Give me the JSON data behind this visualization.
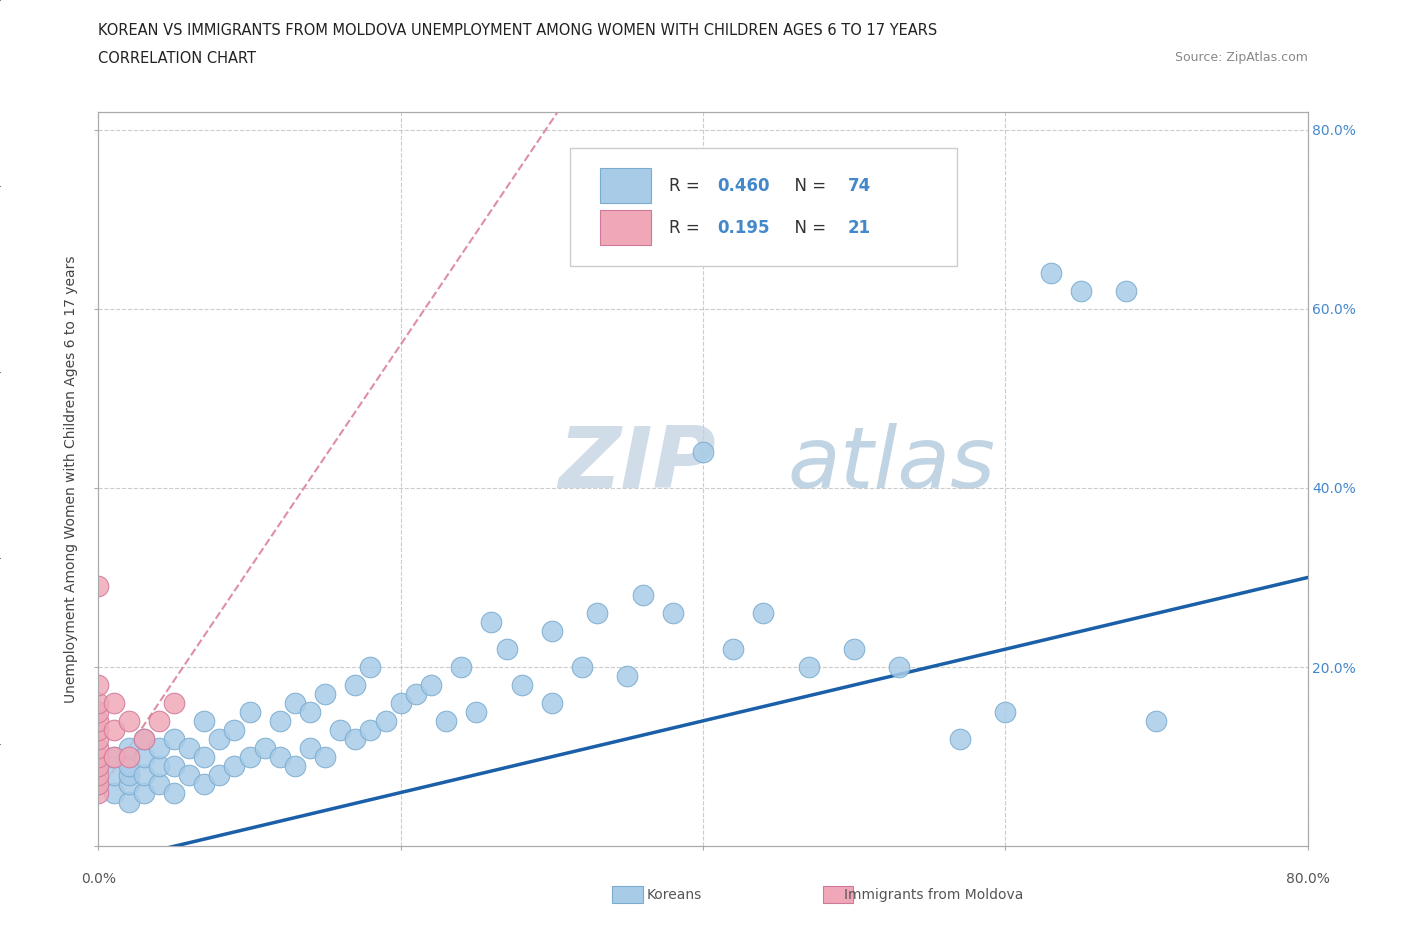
{
  "title_line1": "KOREAN VS IMMIGRANTS FROM MOLDOVA UNEMPLOYMENT AMONG WOMEN WITH CHILDREN AGES 6 TO 17 YEARS",
  "title_line2": "CORRELATION CHART",
  "source_text": "Source: ZipAtlas.com",
  "ylabel": "Unemployment Among Women with Children Ages 6 to 17 years",
  "xlim": [
    0.0,
    0.8
  ],
  "ylim": [
    0.0,
    0.82
  ],
  "korean_R": "0.460",
  "korean_N": "74",
  "moldova_R": "0.195",
  "moldova_N": "21",
  "korean_color": "#a8cce8",
  "korean_edge_color": "#7aacd0",
  "moldova_color": "#f0a8b8",
  "moldova_edge_color": "#d07898",
  "regression_line_korean_color": "#1a5fa8",
  "regression_line_moldova_color": "#d06080",
  "watermark_zip": "ZIP",
  "watermark_atlas": "atlas",
  "watermark_color": "#d0dce8",
  "grid_color": "#cccccc",
  "right_tick_color": "#4488cc",
  "korean_x": [
    0.0,
    0.0,
    0.01,
    0.01,
    0.01,
    0.02,
    0.02,
    0.02,
    0.02,
    0.02,
    0.03,
    0.03,
    0.03,
    0.03,
    0.04,
    0.04,
    0.04,
    0.05,
    0.05,
    0.05,
    0.06,
    0.06,
    0.07,
    0.07,
    0.07,
    0.08,
    0.08,
    0.09,
    0.09,
    0.1,
    0.1,
    0.11,
    0.12,
    0.12,
    0.13,
    0.13,
    0.14,
    0.14,
    0.15,
    0.15,
    0.16,
    0.17,
    0.17,
    0.18,
    0.18,
    0.19,
    0.2,
    0.21,
    0.22,
    0.23,
    0.24,
    0.25,
    0.26,
    0.27,
    0.28,
    0.3,
    0.3,
    0.32,
    0.33,
    0.35,
    0.36,
    0.38,
    0.4,
    0.42,
    0.44,
    0.47,
    0.5,
    0.53,
    0.57,
    0.6,
    0.63,
    0.65,
    0.68,
    0.7
  ],
  "korean_y": [
    0.07,
    0.09,
    0.06,
    0.08,
    0.1,
    0.05,
    0.07,
    0.08,
    0.09,
    0.11,
    0.06,
    0.08,
    0.1,
    0.12,
    0.07,
    0.09,
    0.11,
    0.06,
    0.09,
    0.12,
    0.08,
    0.11,
    0.07,
    0.1,
    0.14,
    0.08,
    0.12,
    0.09,
    0.13,
    0.1,
    0.15,
    0.11,
    0.1,
    0.14,
    0.09,
    0.16,
    0.11,
    0.15,
    0.1,
    0.17,
    0.13,
    0.12,
    0.18,
    0.13,
    0.2,
    0.14,
    0.16,
    0.17,
    0.18,
    0.14,
    0.2,
    0.15,
    0.25,
    0.22,
    0.18,
    0.16,
    0.24,
    0.2,
    0.26,
    0.19,
    0.28,
    0.26,
    0.44,
    0.22,
    0.26,
    0.2,
    0.22,
    0.2,
    0.12,
    0.15,
    0.64,
    0.62,
    0.62,
    0.14
  ],
  "moldova_x": [
    0.0,
    0.0,
    0.0,
    0.0,
    0.0,
    0.0,
    0.0,
    0.0,
    0.0,
    0.0,
    0.0,
    0.0,
    0.0,
    0.01,
    0.01,
    0.01,
    0.02,
    0.02,
    0.03,
    0.04,
    0.05
  ],
  "moldova_y": [
    0.06,
    0.07,
    0.08,
    0.09,
    0.1,
    0.11,
    0.12,
    0.13,
    0.14,
    0.15,
    0.16,
    0.18,
    0.29,
    0.1,
    0.13,
    0.16,
    0.1,
    0.14,
    0.12,
    0.14,
    0.16
  ],
  "korean_slope": 0.4,
  "korean_intercept": -0.02,
  "moldova_slope": 2.5,
  "moldova_intercept": 0.06
}
